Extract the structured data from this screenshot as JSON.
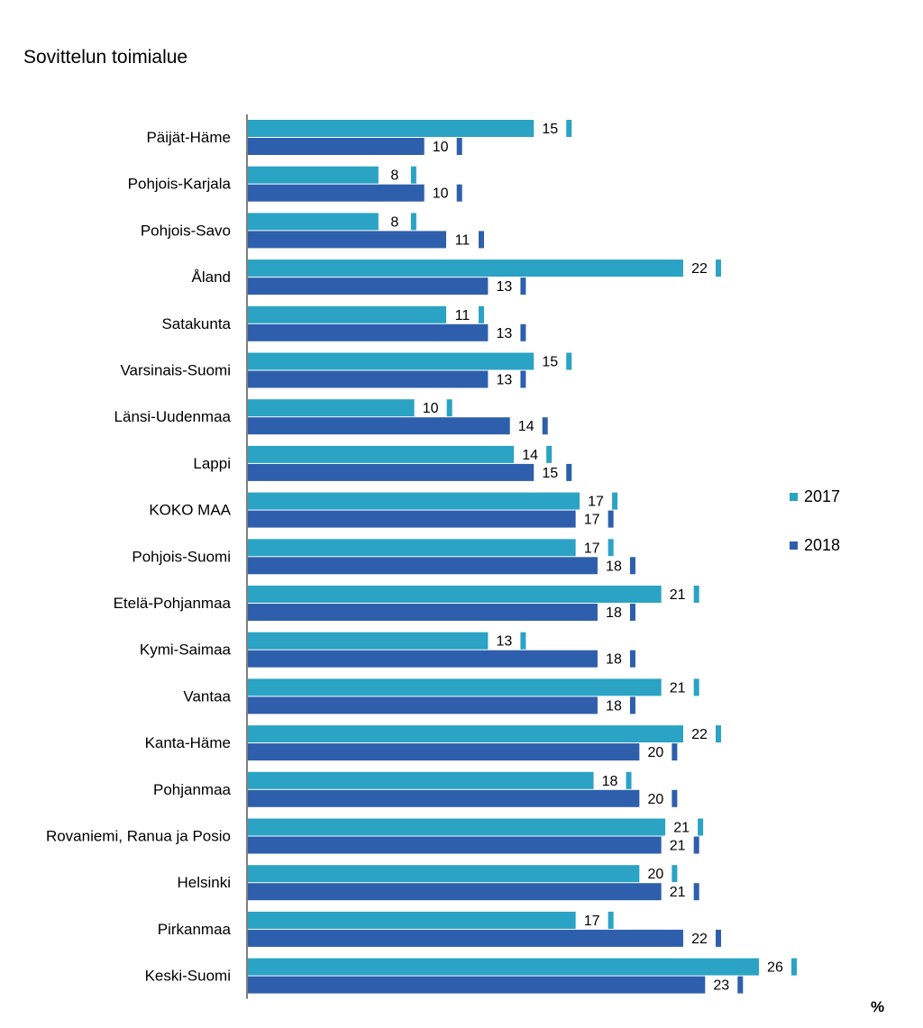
{
  "colors": {
    "s2017": "#2aa3c4",
    "s2018": "#2e5fac"
  },
  "chart_data": {
    "type": "bar",
    "orientation": "horizontal",
    "title": "Sovittelun toimialue",
    "unit": "%",
    "categories": [
      "Päijät-Häme",
      "Pohjois-Karjala",
      "Pohjois-Savo",
      "Åland",
      "Satakunta",
      "Varsinais-Suomi",
      "Länsi-Uudenmaa",
      "Lappi",
      "KOKO MAA",
      "Pohjois-Suomi",
      "Etelä-Pohjanmaa",
      "Kymi-Saimaa",
      "Vantaa",
      "Kanta-Häme",
      "Pohjanmaa",
      "Rovaniemi, Ranua ja Posio",
      "Helsinki",
      "Pirkanmaa",
      "Keski-Suomi"
    ],
    "series": [
      {
        "name": "2017",
        "values": [
          15,
          8,
          8,
          22,
          11,
          15,
          10,
          14,
          17,
          17,
          21,
          13,
          21,
          22,
          18,
          21,
          20,
          17,
          26
        ],
        "bar_values": [
          16.3,
          8.5,
          8.5,
          23.8,
          11.9,
          16.3,
          10.3,
          15.3,
          18.6,
          18.4,
          22.7,
          14.0,
          22.7,
          23.8,
          19.3,
          22.9,
          21.6,
          18.4,
          27.6
        ]
      },
      {
        "name": "2018",
        "values": [
          10,
          10,
          11,
          13,
          13,
          13,
          14,
          15,
          17,
          18,
          18,
          18,
          18,
          20,
          20,
          21,
          21,
          22,
          23
        ],
        "bar_values": [
          10.8,
          10.8,
          11.9,
          14.0,
          14.0,
          14.0,
          15.1,
          16.3,
          18.4,
          19.5,
          19.5,
          19.5,
          19.5,
          21.6,
          21.6,
          22.7,
          22.7,
          23.8,
          24.9
        ]
      }
    ],
    "legend": [
      "2017",
      "2018"
    ],
    "legend_position": "right",
    "xlim": [
      0,
      27.6
    ],
    "grid": false
  }
}
